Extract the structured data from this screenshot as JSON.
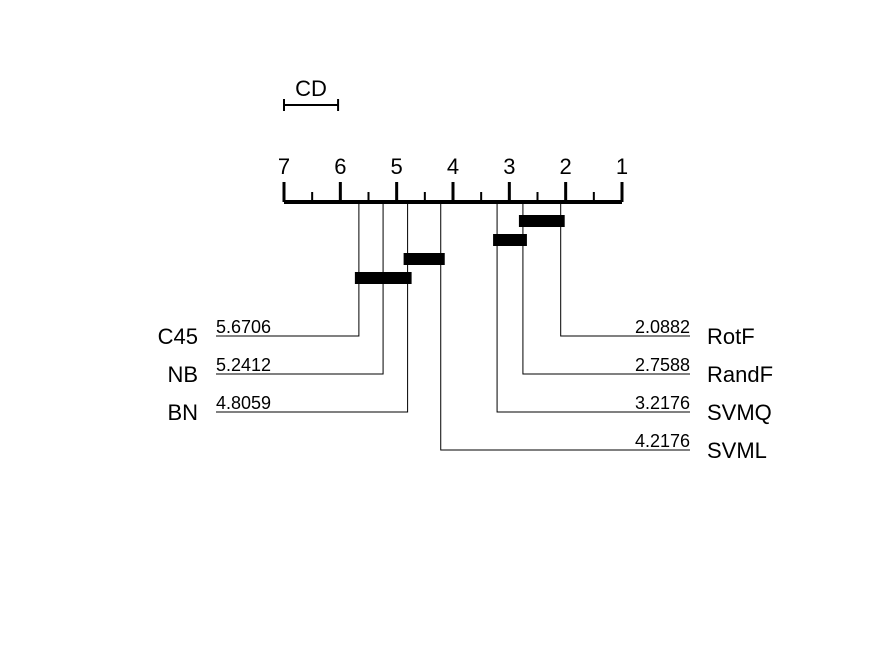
{
  "chart_data": {
    "type": "critical-difference-diagram",
    "axis": {
      "min": 1,
      "max": 7,
      "direction": "reversed",
      "tick_labels": [
        "7",
        "6",
        "5",
        "4",
        "3",
        "2",
        "1"
      ],
      "minor_ticks": true
    },
    "cd": {
      "label": "CD",
      "value": 0.96
    },
    "methods": [
      {
        "name": "C45",
        "rank": 5.6706,
        "rank_label": "5.6706",
        "side": "left"
      },
      {
        "name": "NB",
        "rank": 5.2412,
        "rank_label": "5.2412",
        "side": "left"
      },
      {
        "name": "BN",
        "rank": 4.8059,
        "rank_label": "4.8059",
        "side": "left"
      },
      {
        "name": "RotF",
        "rank": 2.0882,
        "rank_label": "2.0882",
        "side": "right"
      },
      {
        "name": "RandF",
        "rank": 2.7588,
        "rank_label": "2.7588",
        "side": "right"
      },
      {
        "name": "SVMQ",
        "rank": 3.2176,
        "rank_label": "3.2176",
        "side": "right"
      },
      {
        "name": "SVML",
        "rank": 4.2176,
        "rank_label": "4.2176",
        "side": "right"
      }
    ],
    "cliques": [
      {
        "from": 2.0882,
        "to": 2.7588
      },
      {
        "from": 2.7588,
        "to": 3.2176
      },
      {
        "from": 4.2176,
        "to": 4.8059
      },
      {
        "from": 4.8059,
        "to": 5.6706
      }
    ]
  }
}
